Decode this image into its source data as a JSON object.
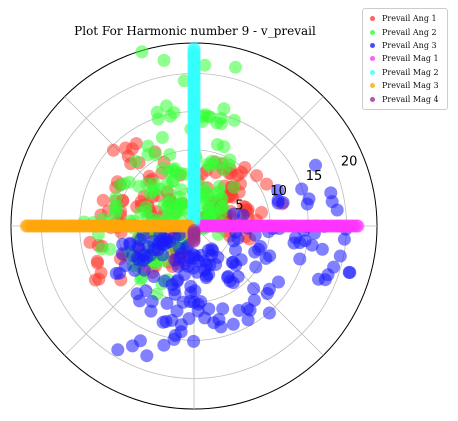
{
  "chart_data": {
    "type": "scatter",
    "projection": "polar",
    "title": "Plot For Harmonic number 9 - v_prevail",
    "r_ticks": [
      5,
      10,
      15,
      20
    ],
    "r_tick_labels": [
      "5",
      "10",
      "15",
      "20"
    ],
    "rlim": [
      0,
      24
    ],
    "theta_grid_deg": [
      0,
      45,
      90,
      135,
      180,
      225,
      270,
      315
    ],
    "grid": true,
    "legend_position": "upper right, outside plot",
    "series": [
      {
        "name": "Prevail Ang 1",
        "color": "#ff3b30",
        "values": [
          [
            0,
            7.5
          ],
          [
            20,
            7.2
          ],
          [
            40,
            6.0
          ],
          [
            65,
            9.0
          ],
          [
            125,
            13.2
          ],
          [
            150,
            11.6
          ],
          [
            170,
            11.4
          ],
          [
            185,
            9.6
          ],
          [
            200,
            13.5
          ],
          [
            215,
            8.6
          ],
          [
            235,
            5.8
          ],
          [
            30,
            11.0
          ]
        ]
      },
      {
        "name": "Prevail Ang 2",
        "color": "#33ff33",
        "values": [
          [
            0,
            3.5
          ],
          [
            45,
            5.0
          ],
          [
            75,
            13.9
          ],
          [
            90,
            22.3
          ],
          [
            100,
            15.1
          ],
          [
            120,
            12.1
          ],
          [
            140,
            7.1
          ],
          [
            160,
            10.9
          ],
          [
            178,
            13.2
          ],
          [
            205,
            9.0
          ],
          [
            225,
            9.9
          ],
          [
            60,
            9.2
          ]
        ]
      },
      {
        "name": "Prevail Ang 3",
        "color": "#1a1aff",
        "values": [
          [
            195,
            8.7
          ],
          [
            210,
            10.4
          ],
          [
            230,
            11.6
          ],
          [
            260,
            15.1
          ],
          [
            270,
            10.0
          ],
          [
            285,
            13.7
          ],
          [
            300,
            14.2
          ],
          [
            320,
            12.9
          ],
          [
            340,
            18.7
          ],
          [
            355,
            19.8
          ],
          [
            10,
            18.4
          ],
          [
            250,
            18.1
          ]
        ]
      },
      {
        "name": "Prevail Mag 1",
        "color": "#ff33ff",
        "values": [
          [
            0,
            1
          ],
          [
            0,
            4
          ],
          [
            0,
            7
          ],
          [
            0,
            10
          ],
          [
            0,
            13
          ],
          [
            0,
            16
          ],
          [
            0,
            18.9
          ],
          [
            0,
            21.5
          ]
        ]
      },
      {
        "name": "Prevail Mag 2",
        "color": "#33ffff",
        "values": [
          [
            90,
            1
          ],
          [
            90,
            4
          ],
          [
            90,
            7
          ],
          [
            90,
            10
          ],
          [
            90,
            13
          ],
          [
            90,
            16
          ],
          [
            90,
            19.5
          ],
          [
            90,
            23.3
          ]
        ]
      },
      {
        "name": "Prevail Mag 3",
        "color": "#ffa50a",
        "values": [
          [
            180,
            1
          ],
          [
            180,
            4
          ],
          [
            180,
            7
          ],
          [
            180,
            10
          ],
          [
            180,
            13
          ],
          [
            180,
            16
          ],
          [
            180,
            19.5
          ],
          [
            180,
            22
          ]
        ]
      },
      {
        "name": "Prevail Mag 4",
        "color": "#9a2f8f",
        "values": [
          [
            270,
            1
          ],
          [
            270,
            2
          ]
        ]
      }
    ]
  }
}
